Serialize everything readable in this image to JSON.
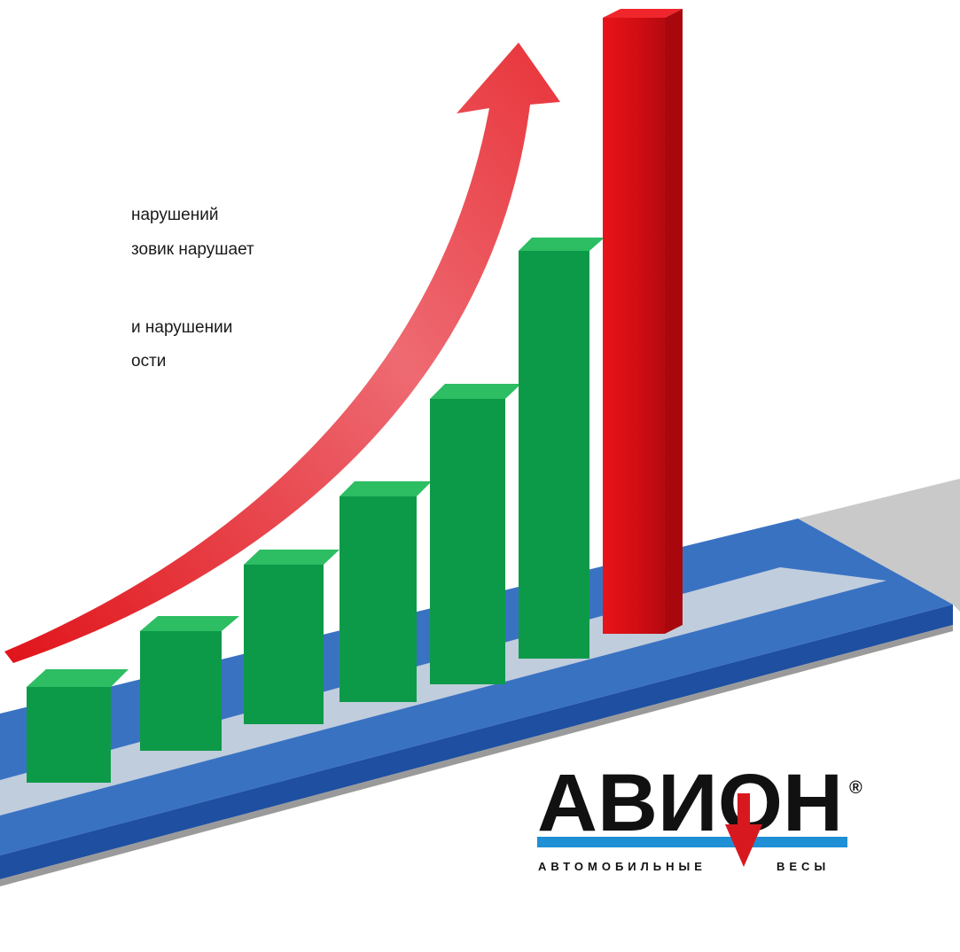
{
  "text_lines": [
    "нарушений",
    "зовик нарушает",
    "и нарушении",
    "ости"
  ],
  "logo": {
    "name": "АВИОН",
    "mark": "®",
    "subtitle_left": "АВТОМОБИЛЬНЫЕ",
    "subtitle_right": "ВЕСЫ"
  }
}
